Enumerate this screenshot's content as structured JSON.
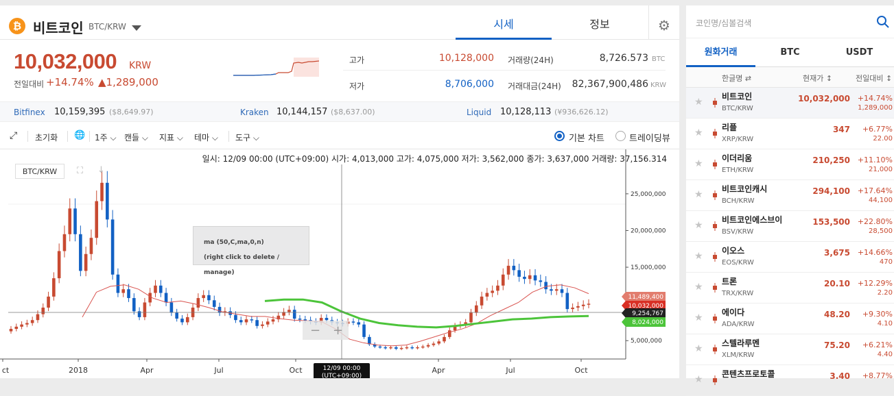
{
  "header": {
    "coin_logo": "₿",
    "coin_name": "비트코인",
    "coin_pair": "BTC/KRW",
    "tabs": [
      {
        "label": "시세"
      },
      {
        "label": "정보"
      }
    ],
    "gear_icon": "⚙"
  },
  "price": {
    "current": "10,032,000",
    "unit": "KRW",
    "change_label": "전일대비",
    "change_rate": "+14.74%",
    "change_amount": "▲1,289,000"
  },
  "stats": {
    "high_label": "고가",
    "high_value": "10,128,000",
    "low_label": "저가",
    "low_value": "8,706,000",
    "vol_label": "거래량(24H)",
    "vol_value": "8,726.573",
    "vol_unit": "BTC",
    "amt_label": "거래대금(24H)",
    "amt_value": "82,367,900,486",
    "amt_unit": "KRW"
  },
  "exchanges": [
    {
      "name": "Bitfinex",
      "value": "10,159,395",
      "sub": "($8,649.97)"
    },
    {
      "name": "Kraken",
      "value": "10,144,157",
      "sub": "($8,637.00)"
    },
    {
      "name": "Liquid",
      "value": "10,128,113",
      "sub": "(¥936,626.12)"
    }
  ],
  "toolbar": {
    "expand_icon": "⤢",
    "reset": "초기화",
    "globe_icon": "🌐",
    "period": "1주",
    "chart_type": "캔들",
    "indicator": "지표",
    "theme": "테마",
    "tools": "도구",
    "basic_chart": "기본 차트",
    "tradingview": "트레이딩뷰"
  },
  "chart": {
    "ohlc_text": "일시: 12/09 00:00 (UTC+09:00)  시가: 4,013,000  고가: 4,075,000  저가: 3,562,000  종가: 3,637,000  거래량: 37,156.314",
    "pair_tag": "BTC/KRW",
    "tooltip_line1": "ma (50,C,ma,0,n)",
    "tooltip_line2": "(right click to delete / manage)",
    "crosshair_label_1": "12/09 00:00",
    "crosshair_label_2": "(UTC+09:00)",
    "price_tags": {
      "ma_high": "11,489,400",
      "last": "10,032,000",
      "cross": "9,254,767",
      "ma_low": "8,024,000"
    }
  },
  "chart_data": {
    "type": "candlestick",
    "title": "",
    "xlabel": "",
    "ylabel": "",
    "ylim": [
      2500000,
      29000000
    ],
    "y_ticks": [
      5000000,
      10000000,
      15000000,
      20000000,
      25000000
    ],
    "y_tick_labels": [
      "5,000,000",
      "10,000,000",
      "15,000,000",
      "20,000,000",
      "25,000,000"
    ],
    "x_tick_labels": [
      "ct",
      "2018",
      "Apr",
      "Jul",
      "Oct",
      "Apr",
      "Jul",
      "Oct"
    ],
    "series": [
      {
        "values": [
          6.6,
          6.9,
          7.2,
          7.4,
          7.8,
          8.6,
          9.5,
          11.0,
          13.5,
          17.2,
          19.5,
          23.0,
          19.5,
          14.5,
          16.8,
          19.0,
          24.0,
          26.5,
          21.5,
          14.0,
          11.5,
          12.0,
          10.8,
          9.0,
          8.2,
          10.2,
          11.5,
          12.5,
          11.5,
          10.2,
          8.8,
          8.0,
          7.5,
          8.2,
          9.5,
          10.8,
          11.2,
          10.5,
          9.6,
          8.8,
          9.0,
          8.5,
          7.8,
          7.5,
          7.9,
          7.8,
          7.0,
          7.2,
          7.6,
          7.9,
          8.4,
          8.9,
          9.2,
          8.0,
          7.9,
          7.8,
          7.6,
          7.5,
          8.1,
          7.8,
          7.5,
          7.4,
          7.3,
          7.6,
          7.5,
          7.2,
          5.5,
          4.5,
          4.2,
          4.1,
          4.0,
          4.1,
          3.9,
          4.0,
          4.1,
          4.0,
          4.1,
          4.2,
          4.4,
          4.6,
          4.9,
          5.5,
          6.4,
          7.0,
          7.2,
          7.5,
          8.8,
          9.8,
          11.0,
          11.5,
          11.8,
          12.5,
          14.0,
          15.2,
          14.6,
          13.7,
          13.4,
          13.9,
          13.2,
          13.0,
          12.0,
          11.8,
          12.0,
          11.5,
          9.3,
          9.5,
          9.7,
          9.9,
          10.03
        ]
      }
    ],
    "series_ma_short": [
      8.2,
      11.6,
      12.4,
      12.6,
      12.0,
      10.8,
      10.2,
      10.4,
      10.0,
      9.5,
      8.9,
      8.6,
      8.3,
      8.3,
      8.0,
      7.8,
      7.7,
      7.6,
      6.6,
      5.2,
      4.7,
      4.4,
      4.3,
      4.4,
      4.9,
      5.5,
      6.1,
      6.6,
      7.3,
      8.4,
      9.3,
      10.2,
      11.6,
      12.4,
      12.6,
      12.2,
      11.4
    ],
    "series_ma_long": [
      10.4,
      10.6,
      10.6,
      10.2,
      9.0,
      8.0,
      7.4,
      7.1,
      6.9,
      6.8,
      7.0,
      7.3,
      7.6,
      7.9,
      8.0,
      8.2,
      8.3,
      8.35
    ]
  },
  "right_panel": {
    "search_placeholder": "코인명/심볼검색",
    "tabs": [
      {
        "label": "원화거래"
      },
      {
        "label": "BTC"
      },
      {
        "label": "USDT"
      }
    ],
    "col_name": "한글명 ⇄",
    "col_price": "현재가 ↕",
    "col_change": "전일대비 ↕",
    "coins": [
      {
        "name": "비트코인",
        "pair": "BTC/KRW",
        "price": "10,032,000",
        "rate": "+14.74%",
        "amount": "1,289,000"
      },
      {
        "name": "리플",
        "pair": "XRP/KRW",
        "price": "347",
        "rate": "+6.77%",
        "amount": "22.00"
      },
      {
        "name": "이더리움",
        "pair": "ETH/KRW",
        "price": "210,250",
        "rate": "+11.10%",
        "amount": "21,000"
      },
      {
        "name": "비트코인캐시",
        "pair": "BCH/KRW",
        "price": "294,100",
        "rate": "+17.64%",
        "amount": "44,100"
      },
      {
        "name": "비트코인에스브이",
        "pair": "BSV/KRW",
        "price": "153,500",
        "rate": "+22.80%",
        "amount": "28,500"
      },
      {
        "name": "이오스",
        "pair": "EOS/KRW",
        "price": "3,675",
        "rate": "+14.66%",
        "amount": "470"
      },
      {
        "name": "트론",
        "pair": "TRX/KRW",
        "price": "20.10",
        "rate": "+12.29%",
        "amount": "2.20"
      },
      {
        "name": "에이다",
        "pair": "ADA/KRW",
        "price": "48.20",
        "rate": "+9.30%",
        "amount": "4.10"
      },
      {
        "name": "스텔라루멘",
        "pair": "XLM/KRW",
        "price": "75.20",
        "rate": "+6.21%",
        "amount": "4.40"
      },
      {
        "name": "콘텐츠프로토콜",
        "pair": "",
        "price": "3.40",
        "rate": "+8.77%",
        "amount": ""
      }
    ]
  },
  "colors": {
    "up": "#c84a31",
    "down": "#1261c4",
    "accent": "#1261c4",
    "ma_short": "#d9534f",
    "ma_long": "#4cc43a"
  }
}
